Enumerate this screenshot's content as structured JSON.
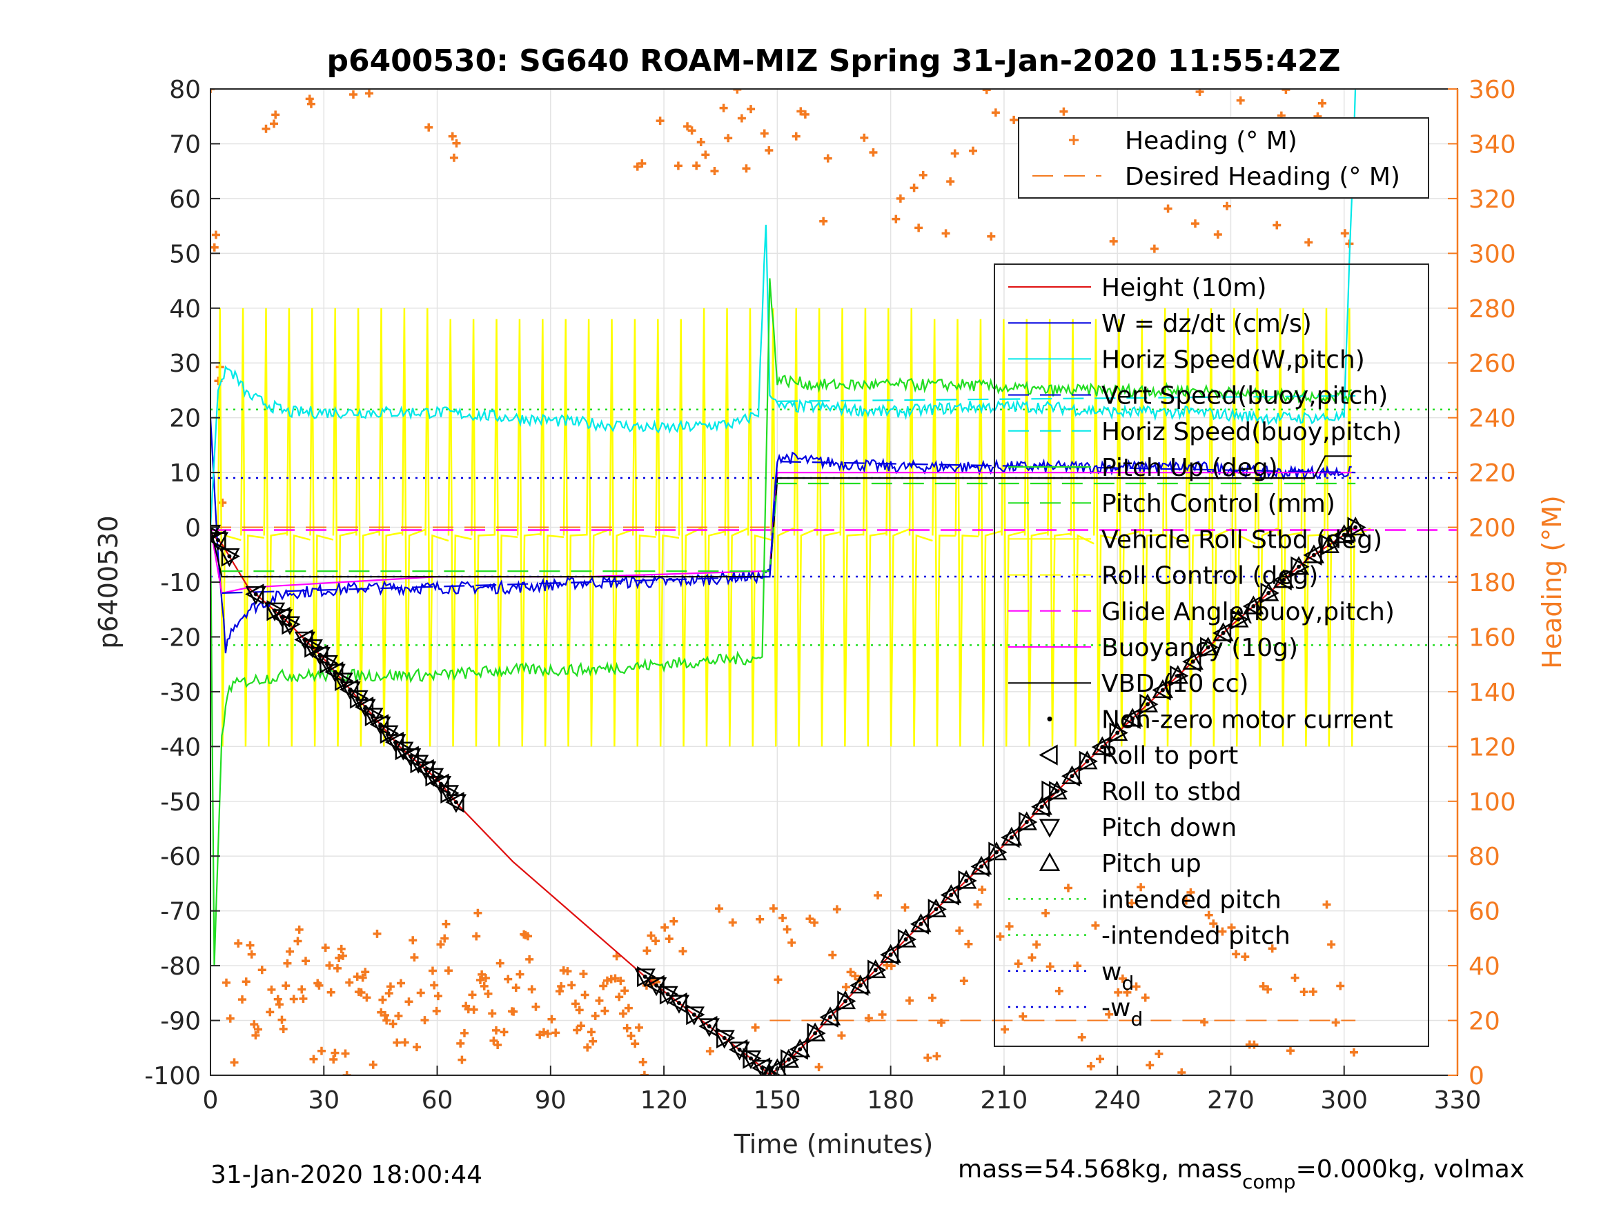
{
  "chart_data": {
    "type": "line",
    "title": "p6400530: SG640 ROAM-MIZ Spring 31-Jan-2020 11:55:42Z",
    "xlabel": "Time (minutes)",
    "ylabel_left": "p6400530",
    "ylabel_right": "Heading (°M)",
    "xlim": [
      0,
      330
    ],
    "ylim_left": [
      -100,
      80
    ],
    "ylim_right": [
      0,
      360
    ],
    "x_ticks": [
      0,
      30,
      60,
      90,
      120,
      150,
      180,
      210,
      240,
      270,
      300,
      330
    ],
    "y_ticks_left": [
      80,
      70,
      60,
      50,
      40,
      30,
      20,
      10,
      0,
      -10,
      -20,
      -30,
      -40,
      -50,
      -60,
      -70,
      -80,
      -90,
      -100
    ],
    "y_ticks_right": [
      360,
      340,
      320,
      300,
      280,
      260,
      240,
      220,
      200,
      180,
      160,
      140,
      120,
      100,
      80,
      60,
      40,
      20,
      0
    ],
    "grid": true,
    "footer_left": "31-Jan-2020 18:00:44",
    "footer_right_parts": [
      "mass=54.568kg, mass",
      "comp",
      "=0.000kg, volmax"
    ],
    "heading_legend": [
      {
        "label": "Heading (° M)",
        "style": "plus",
        "color": "#f47a20"
      },
      {
        "label": "Desired Heading (° M)",
        "style": "dash",
        "color": "#f47a20"
      }
    ],
    "legend": [
      {
        "label": "Height (10m)",
        "style": "solid",
        "color": "#e01010"
      },
      {
        "label": "W = dz/dt (cm/s)",
        "style": "solid",
        "color": "#0000e0"
      },
      {
        "label": "Horiz Speed(W,pitch)",
        "style": "solid",
        "color": "#00e8e8"
      },
      {
        "label": "Vert Speed(buoy,pitch)",
        "style": "dash",
        "color": "#0000e0"
      },
      {
        "label": "Horiz Speed(buoy,pitch)",
        "style": "dash",
        "color": "#00e8e8"
      },
      {
        "label": "Pitch Up (deg)",
        "style": "solid",
        "color": "#22dd22"
      },
      {
        "label": "Pitch Control (mm)",
        "style": "dash",
        "color": "#22dd22"
      },
      {
        "label": "Vehicle Roll Stbd (deg)",
        "style": "solid",
        "color": "#ffff00"
      },
      {
        "label": "Roll Control (deg)",
        "style": "dash",
        "color": "#ffff00"
      },
      {
        "label": "Glide Angle(buoy,pitch)",
        "style": "dash",
        "color": "#ff00ff"
      },
      {
        "label": "Buoyancy (10g)",
        "style": "solid",
        "color": "#ff00ff"
      },
      {
        "label": "VBD (10 cc)",
        "style": "solid",
        "color": "#000000"
      },
      {
        "label": "Non-zero motor current",
        "style": "dot",
        "color": "#000000"
      },
      {
        "label": "Roll to port",
        "style": "tri-left",
        "color": "#000000"
      },
      {
        "label": "Roll to stbd",
        "style": "tri-right",
        "color": "#000000"
      },
      {
        "label": "Pitch down",
        "style": "tri-down",
        "color": "#000000"
      },
      {
        "label": "Pitch up",
        "style": "tri-up",
        "color": "#000000"
      },
      {
        "label": "intended pitch",
        "style": "dotted",
        "color": "#22dd22"
      },
      {
        "label": "-intended pitch",
        "style": "dotted",
        "color": "#22dd22"
      },
      {
        "label": "w",
        "sub": "d",
        "style": "dotted",
        "color": "#0000e0"
      },
      {
        "label": "-w",
        "sub": "d",
        "style": "dotted",
        "color": "#0000e0"
      }
    ],
    "series": [
      {
        "name": "Height (10m)",
        "color": "#e01010",
        "x": [
          0,
          3,
          10,
          20,
          30,
          40,
          50,
          60,
          66,
          80,
          100,
          115,
          130,
          145,
          148,
          155,
          170,
          190,
          210,
          230,
          250,
          270,
          290,
          303
        ],
        "y": [
          -1,
          -3,
          -11,
          -17,
          -24,
          -32,
          -40,
          -46,
          -51,
          -61,
          -73,
          -82,
          -90,
          -98,
          -100,
          -96,
          -85,
          -71,
          -58,
          -44,
          -31,
          -18,
          -6,
          0
        ]
      },
      {
        "name": "W = dz/dt (cm/s)",
        "color": "#0000e0",
        "x": [
          0,
          2,
          4,
          6,
          10,
          20,
          40,
          60,
          80,
          100,
          120,
          140,
          146,
          148,
          150,
          160,
          180,
          200,
          220,
          240,
          260,
          280,
          300,
          302
        ],
        "y": [
          20,
          -5,
          -22,
          -18,
          -15,
          -12,
          -11,
          -11,
          -11,
          -10,
          -10,
          -9,
          -9,
          -8,
          13,
          12,
          11,
          11,
          11,
          11,
          11,
          10,
          10,
          10
        ]
      },
      {
        "name": "Horiz Speed(W,pitch)",
        "color": "#00e8e8",
        "x": [
          0,
          2,
          4,
          6,
          10,
          20,
          40,
          60,
          80,
          100,
          120,
          140,
          145,
          147,
          148,
          150,
          160,
          180,
          200,
          220,
          240,
          260,
          280,
          300,
          302,
          303
        ],
        "y": [
          0,
          25,
          29,
          28,
          24,
          21,
          21,
          21,
          20,
          19,
          18,
          19,
          21,
          56,
          25,
          22,
          22,
          21,
          22,
          22,
          21,
          21,
          20,
          20,
          60,
          80
        ]
      },
      {
        "name": "Pitch Up (deg)",
        "color": "#22dd22",
        "x": [
          0,
          1,
          3,
          5,
          10,
          20,
          40,
          60,
          80,
          100,
          120,
          140,
          146,
          148,
          150,
          160,
          180,
          200,
          220,
          240,
          260,
          280,
          300,
          302
        ],
        "y": [
          0,
          -80,
          -38,
          -29,
          -28,
          -27,
          -27,
          -27,
          -26,
          -26,
          -25,
          -24,
          -24,
          45,
          27,
          26,
          26,
          26,
          25,
          25,
          25,
          24,
          24,
          24
        ]
      },
      {
        "name": "Buoyancy (10g)",
        "color": "#ff00ff",
        "x": [
          0,
          3,
          10,
          60,
          100,
          146,
          148,
          150,
          200,
          250,
          302
        ],
        "y": [
          0,
          -12,
          -11,
          -9,
          -9,
          -8,
          -8,
          10,
          10,
          10,
          10
        ]
      },
      {
        "name": "VBD (10 cc)",
        "color": "#000000",
        "x": [
          0,
          3,
          10,
          60,
          100,
          146,
          148,
          150,
          200,
          250,
          292,
          295,
          302
        ],
        "y": [
          0,
          -9,
          -9,
          -9,
          -9,
          -9,
          -9,
          9,
          9,
          9,
          9,
          13,
          13
        ]
      }
    ],
    "intended_pitch": 21.5,
    "w_d": 9,
    "glide_angle_level": -0.5,
    "desired_heading_deg": [
      200,
      20
    ],
    "desired_heading_times": [
      [
        0,
        148
      ],
      [
        148,
        303
      ]
    ],
    "motor_markers_time": [
      0,
      2,
      5,
      12,
      17,
      19,
      21,
      25,
      27,
      29,
      31,
      33,
      35,
      37,
      39,
      41,
      43,
      45,
      47,
      49,
      51,
      53,
      55,
      57,
      59,
      61,
      63,
      65,
      115,
      118,
      121,
      124,
      128,
      132,
      136,
      140,
      143,
      146,
      148,
      150,
      153,
      156,
      160,
      164,
      168,
      172,
      176,
      180,
      184,
      188,
      192,
      196,
      200,
      204,
      208,
      212,
      216,
      220,
      224,
      228,
      232,
      236,
      240,
      244,
      248,
      252,
      256,
      260,
      264,
      268,
      272,
      276,
      280,
      284,
      288,
      292,
      296,
      300,
      303
    ]
  }
}
